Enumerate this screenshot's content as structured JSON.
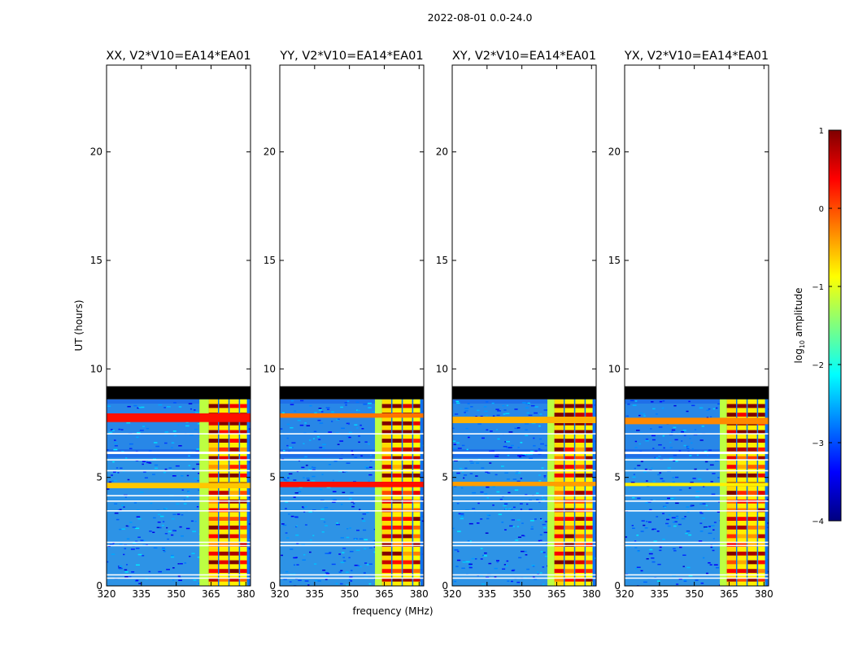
{
  "figure": {
    "suptitle": "2022-08-01 0.0-24.0",
    "xlabel": "frequency (MHz)",
    "ylabel": "UT (hours)"
  },
  "colors": {
    "background": "#ffffff",
    "noise_base": "#1f6fe8",
    "noise_light": "#3fbfe4",
    "flag_band": "#000000",
    "gap_line": "#ffffff"
  },
  "colorbar": {
    "label": "log10 amplitude",
    "label_base": "log",
    "label_sub": "10",
    "label_rest": " amplitude",
    "range": [
      -4,
      1
    ],
    "ticks": [
      1,
      0,
      -1,
      -2,
      -3,
      -4
    ],
    "tick_labels": [
      "1",
      "0",
      "−1",
      "−2",
      "−3",
      "−4"
    ],
    "colormap": "jet",
    "stops": [
      "#00007f",
      "#0000ff",
      "#007fff",
      "#00ffff",
      "#7fff7f",
      "#ffff00",
      "#ff7f00",
      "#ff0000",
      "#7f0000"
    ]
  },
  "chart_data": {
    "type": "heatmap",
    "xlim": [
      320,
      382
    ],
    "ylim": [
      0,
      24
    ],
    "xticks": [
      320,
      335,
      350,
      365,
      380
    ],
    "xtick_labels": [
      "320",
      "335",
      "350",
      "365",
      "380"
    ],
    "yticks": [
      0,
      5,
      10,
      15,
      20
    ],
    "ytick_labels": [
      "0",
      "5",
      "10",
      "15",
      "20"
    ],
    "data_coverage_hours": [
      0,
      8.6
    ],
    "flagged_band_hours": [
      8.6,
      9.2
    ],
    "no_data_hours": [
      9.2,
      24
    ],
    "gaps_hours": [
      0.35,
      0.5,
      1.85,
      2.0,
      3.45,
      3.9,
      4.15,
      5.3,
      5.8,
      6.1,
      6.15,
      7.0
    ],
    "rfi_channels_mhz": [
      {
        "range": [
          364,
          368
        ],
        "log_amp": 0.5
      },
      {
        "range": [
          368.5,
          372.5
        ],
        "log_amp": 0.4
      },
      {
        "range": [
          373,
          377
        ],
        "log_amp": 0.4
      },
      {
        "range": [
          377.5,
          380.5
        ],
        "log_amp": 0.3
      }
    ],
    "panels": [
      {
        "title": "XX, V2*V10=EA14*EA01",
        "show_ytick_labels": true,
        "band_edge_mhz": 360,
        "bright_rows": [
          {
            "hours": [
              7.55,
              7.95
            ],
            "log_amp": 0.3,
            "span": "full"
          },
          {
            "hours": [
              4.5,
              4.75
            ],
            "log_amp": -0.6,
            "span": "full"
          }
        ]
      },
      {
        "title": "YY, V2*V10=EA14*EA01",
        "show_ytick_labels": true,
        "band_edge_mhz": 361,
        "bright_rows": [
          {
            "hours": [
              7.75,
              7.95
            ],
            "log_amp": -0.2,
            "span": "full"
          },
          {
            "hours": [
              4.55,
              4.8
            ],
            "log_amp": 0.3,
            "span": "full"
          }
        ]
      },
      {
        "title": "XY, V2*V10=EA14*EA01",
        "show_ytick_labels": true,
        "band_edge_mhz": 361,
        "bright_rows": [
          {
            "hours": [
              7.5,
              7.8
            ],
            "log_amp": -0.5,
            "span": "full"
          },
          {
            "hours": [
              4.6,
              4.8
            ],
            "log_amp": -0.4,
            "span": "full"
          }
        ]
      },
      {
        "title": "YX, V2*V10=EA14*EA01",
        "show_ytick_labels": true,
        "band_edge_mhz": 361,
        "bright_rows": [
          {
            "hours": [
              7.45,
              7.75
            ],
            "log_amp": -0.3,
            "span": "full"
          },
          {
            "hours": [
              4.6,
              4.75
            ],
            "log_amp": -0.8,
            "span": "full"
          }
        ]
      }
    ]
  }
}
